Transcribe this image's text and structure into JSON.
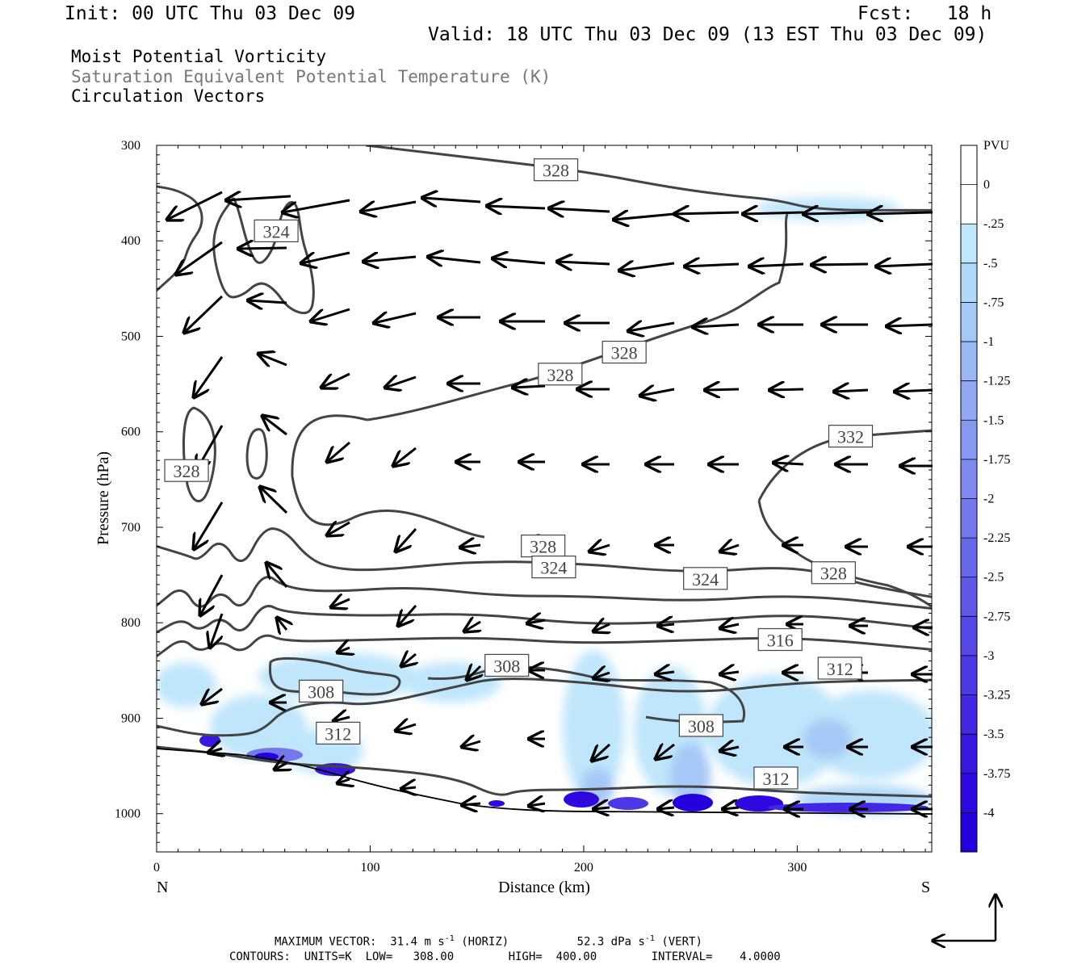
{
  "header": {
    "init": "Init: 00 UTC Thu 03 Dec 09",
    "fcst": "Fcst:   18 h",
    "valid": "Valid: 18 UTC Thu 03 Dec 09 (13 EST Thu 03 Dec 09)",
    "field1": "Moist Potential Vorticity",
    "field2": "Saturation Equivalent Potential Temperature (K)",
    "field3": "Circulation Vectors"
  },
  "footer": {
    "maxvec_label": "MAXIMUM VECTOR:",
    "maxvec_horiz": "31.4 m s",
    "maxvec_horiz_unit": "(HORIZ)",
    "maxvec_vert": "52.3 dPa s",
    "maxvec_vert_unit": "(VERT)",
    "exp": "-1",
    "contours": "CONTOURS:  UNITS=K  LOW=   308.00        HIGH=  400.00        INTERVAL=    4.0000"
  },
  "chart_data": {
    "type": "cross-section",
    "xlabel": "Distance (km)",
    "ylabel": "Pressure (hPa)",
    "xlim": [
      0,
      363
    ],
    "ylim": [
      1040,
      300
    ],
    "x_ticks": [
      "0",
      "100",
      "200",
      "300"
    ],
    "x_tick_values": [
      0,
      100,
      200,
      300
    ],
    "y_ticks": [
      "300",
      "400",
      "500",
      "600",
      "700",
      "800",
      "900",
      "1000"
    ],
    "y_tick_values": [
      300,
      400,
      500,
      600,
      700,
      800,
      900,
      1000
    ],
    "left_end_label": "N",
    "right_end_label": "S",
    "colorbar": {
      "title": "PVU",
      "labels": [
        "0",
        "-.25",
        "-.5",
        "-.75",
        "-1",
        "-1.25",
        "-1.5",
        "-1.75",
        "-2",
        "-2.25",
        "-2.5",
        "-2.75",
        "-3",
        "-3.25",
        "-3.5",
        "-3.75",
        "-4"
      ],
      "colors": [
        "#ffffff",
        "#ffffff",
        "#bfe6fb",
        "#b0d8f8",
        "#a6c8f6",
        "#9cb8f4",
        "#92a8f2",
        "#8898f0",
        "#7e88ee",
        "#7478ec",
        "#6a68ea",
        "#6058e8",
        "#5648e6",
        "#4c38e4",
        "#4228e2",
        "#3818e0",
        "#2e08de",
        "#2400dc"
      ]
    },
    "contour_labels": [
      {
        "text": "328",
        "x": 187,
        "p": 326
      },
      {
        "text": "324",
        "x": 56,
        "p": 390
      },
      {
        "text": "328",
        "x": 219,
        "p": 517
      },
      {
        "text": "328",
        "x": 189,
        "p": 540
      },
      {
        "text": "332",
        "x": 325,
        "p": 605
      },
      {
        "text": "328",
        "x": 14,
        "p": 641
      },
      {
        "text": "328",
        "x": 181,
        "p": 720
      },
      {
        "text": "324",
        "x": 186,
        "p": 742
      },
      {
        "text": "324",
        "x": 257,
        "p": 754
      },
      {
        "text": "328",
        "x": 317,
        "p": 748
      },
      {
        "text": "316",
        "x": 292,
        "p": 818
      },
      {
        "text": "312",
        "x": 320,
        "p": 848
      },
      {
        "text": "308",
        "x": 164,
        "p": 845
      },
      {
        "text": "308",
        "x": 77,
        "p": 872
      },
      {
        "text": "308",
        "x": 255,
        "p": 908
      },
      {
        "text": "312",
        "x": 85,
        "p": 916
      },
      {
        "text": "312",
        "x": 290,
        "p": 963
      }
    ],
    "contours": [
      {
        "points": [
          [
            98,
            300
          ],
          [
            140,
            311
          ],
          [
            200,
            327
          ],
          [
            240,
            344
          ],
          [
            270,
            353
          ],
          [
            290,
            357
          ],
          [
            310,
            368
          ],
          [
            363,
            368
          ]
        ]
      },
      {
        "points": [
          [
            0,
            343
          ],
          [
            10,
            347
          ],
          [
            20,
            360
          ],
          [
            22,
            383
          ],
          [
            15,
            405
          ],
          [
            12,
            428
          ],
          [
            0,
            452
          ]
        ]
      },
      {
        "points": [
          [
            36,
            355
          ],
          [
            28,
            380
          ],
          [
            26,
            412
          ],
          [
            32,
            460
          ],
          [
            40,
            458
          ],
          [
            48,
            442
          ],
          [
            55,
            450
          ],
          [
            62,
            472
          ],
          [
            72,
            478
          ],
          [
            74,
            455
          ],
          [
            72,
            425
          ],
          [
            68,
            398
          ],
          [
            66,
            362
          ],
          [
            62,
            358
          ],
          [
            58,
            374
          ],
          [
            55,
            408
          ],
          [
            48,
            428
          ],
          [
            43,
            408
          ],
          [
            38,
            365
          ],
          [
            36,
            355
          ]
        ]
      },
      {
        "points": [
          [
            0,
            720
          ],
          [
            15,
            730
          ],
          [
            20,
            735
          ],
          [
            30,
            710
          ],
          [
            40,
            745
          ],
          [
            50,
            700
          ],
          [
            60,
            703
          ],
          [
            70,
            730
          ],
          [
            80,
            742
          ],
          [
            100,
            746
          ],
          [
            150,
            735
          ],
          [
            200,
            738
          ],
          [
            250,
            748
          ],
          [
            300,
            740
          ],
          [
            330,
            760
          ],
          [
            363,
            773
          ]
        ]
      },
      {
        "points": [
          [
            0,
            782
          ],
          [
            12,
            760
          ],
          [
            20,
            790
          ],
          [
            30,
            764
          ],
          [
            40,
            790
          ],
          [
            50,
            746
          ],
          [
            60,
            763
          ],
          [
            80,
            768
          ],
          [
            120,
            762
          ],
          [
            160,
            772
          ],
          [
            200,
            772
          ],
          [
            250,
            778
          ],
          [
            300,
            770
          ],
          [
            363,
            785
          ]
        ]
      },
      {
        "points": [
          [
            0,
            810
          ],
          [
            12,
            795
          ],
          [
            20,
            810
          ],
          [
            30,
            792
          ],
          [
            40,
            815
          ],
          [
            50,
            778
          ],
          [
            60,
            790
          ],
          [
            100,
            793
          ],
          [
            150,
            790
          ],
          [
            200,
            802
          ],
          [
            250,
            799
          ],
          [
            300,
            790
          ],
          [
            363,
            806
          ]
        ]
      },
      {
        "points": [
          [
            0,
            835
          ],
          [
            12,
            815
          ],
          [
            20,
            832
          ],
          [
            30,
            818
          ],
          [
            40,
            833
          ],
          [
            50,
            810
          ],
          [
            60,
            820
          ],
          [
            100,
            818
          ],
          [
            150,
            815
          ],
          [
            200,
            822
          ],
          [
            250,
            818
          ],
          [
            300,
            815
          ],
          [
            363,
            828
          ]
        ]
      },
      {
        "points": [
          [
            0,
            908
          ],
          [
            20,
            918
          ],
          [
            40,
            918
          ],
          [
            50,
            912
          ],
          [
            60,
            890
          ],
          [
            80,
            882
          ],
          [
            100,
            887
          ],
          [
            140,
            867
          ],
          [
            160,
            857
          ],
          [
            200,
            862
          ],
          [
            250,
            875
          ],
          [
            300,
            862
          ],
          [
            363,
            860
          ]
        ]
      },
      {
        "points": [
          [
            0,
            930
          ],
          [
            30,
            937
          ],
          [
            60,
            948
          ],
          [
            100,
            952
          ],
          [
            140,
            962
          ],
          [
            160,
            983
          ],
          [
            170,
            975
          ],
          [
            200,
            975
          ],
          [
            250,
            970
          ],
          [
            300,
            978
          ],
          [
            363,
            982
          ]
        ]
      }
    ]
  }
}
